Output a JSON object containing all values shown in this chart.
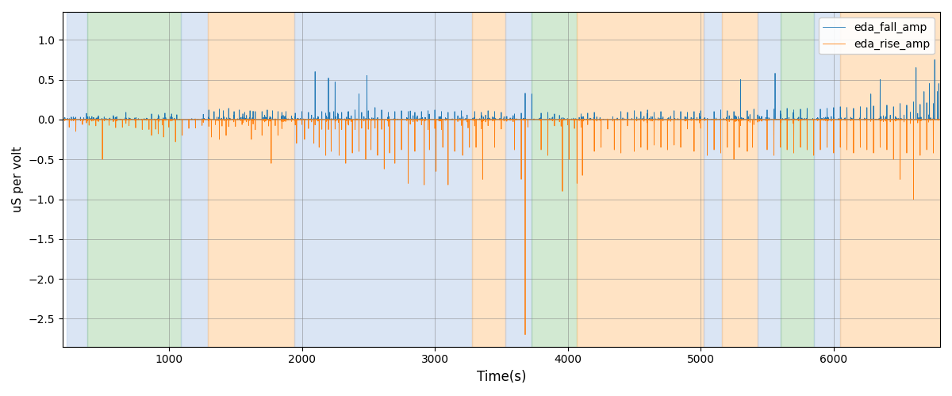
{
  "xlabel": "Time(s)",
  "ylabel": "uS per volt",
  "xlim": [
    200,
    6800
  ],
  "ylim": [
    -2.85,
    1.35
  ],
  "fall_color": "#1f77b4",
  "rise_color": "#ff7f0e",
  "legend_labels": [
    "eda_fall_amp",
    "eda_rise_amp"
  ],
  "bg_segments": [
    {
      "start": 230,
      "end": 385,
      "color": "#aec6e8",
      "alpha": 0.45
    },
    {
      "start": 385,
      "end": 1090,
      "color": "#90c990",
      "alpha": 0.4
    },
    {
      "start": 1090,
      "end": 1290,
      "color": "#aec6e8",
      "alpha": 0.45
    },
    {
      "start": 1290,
      "end": 1940,
      "color": "#ffc88a",
      "alpha": 0.5
    },
    {
      "start": 1940,
      "end": 3280,
      "color": "#aec6e8",
      "alpha": 0.45
    },
    {
      "start": 3280,
      "end": 3530,
      "color": "#ffc88a",
      "alpha": 0.5
    },
    {
      "start": 3530,
      "end": 3730,
      "color": "#aec6e8",
      "alpha": 0.45
    },
    {
      "start": 3730,
      "end": 4070,
      "color": "#90c990",
      "alpha": 0.4
    },
    {
      "start": 4070,
      "end": 5020,
      "color": "#ffc88a",
      "alpha": 0.5
    },
    {
      "start": 5020,
      "end": 5160,
      "color": "#aec6e8",
      "alpha": 0.45
    },
    {
      "start": 5160,
      "end": 5430,
      "color": "#ffc88a",
      "alpha": 0.5
    },
    {
      "start": 5430,
      "end": 5600,
      "color": "#aec6e8",
      "alpha": 0.45
    },
    {
      "start": 5600,
      "end": 5850,
      "color": "#90c990",
      "alpha": 0.4
    },
    {
      "start": 5850,
      "end": 6050,
      "color": "#aec6e8",
      "alpha": 0.45
    },
    {
      "start": 6050,
      "end": 6800,
      "color": "#ffc88a",
      "alpha": 0.5
    }
  ],
  "seed": 42,
  "n_points": 6500,
  "t_start": 200,
  "t_end": 6800
}
